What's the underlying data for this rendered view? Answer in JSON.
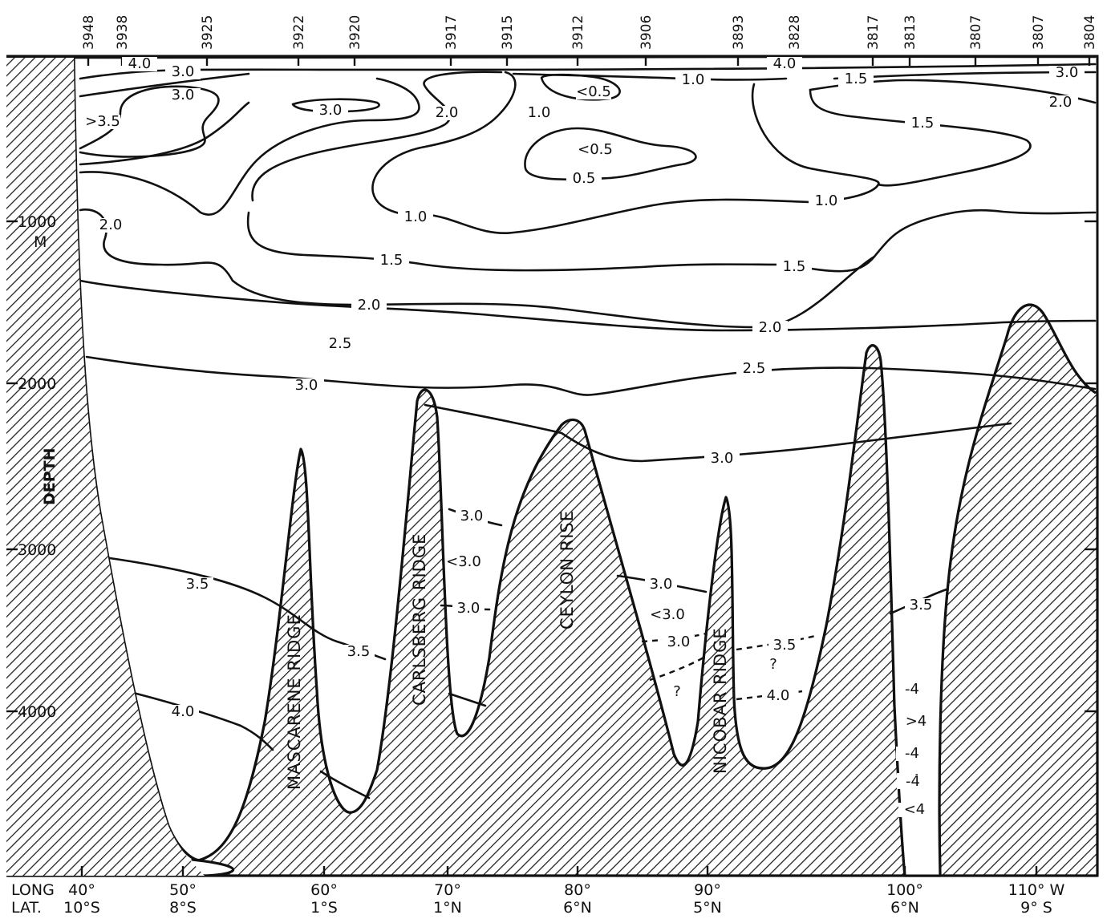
{
  "stations": [
    "3948",
    "3938",
    "3925",
    "3922",
    "3920",
    "3917",
    "3915",
    "3912",
    "3906",
    "3893",
    "3828",
    "3817",
    "3813",
    "3807",
    "3807",
    "3804"
  ],
  "depth_axis": {
    "title": "DEPTH",
    "unit": "M",
    "ticks": [
      "1000",
      "2000",
      "3000",
      "4000"
    ]
  },
  "bottom_axis": {
    "row_labels": [
      "LONG",
      "LAT."
    ],
    "longitudes": [
      "40°",
      "50°",
      "60°",
      "70°",
      "80°",
      "90°",
      "100°",
      "110° W"
    ],
    "latitudes": [
      "10°S",
      "8°S",
      "1°S",
      "1°N",
      "6°N",
      "5°N",
      "6°N",
      "9° S"
    ]
  },
  "ridges": [
    "MASCARENE RIDGE",
    "CARLSBERG RIDGE",
    "CEYLON RISE",
    "NICOBAR RIDGE"
  ],
  "contour_labels": {
    "surface": [
      "4.0",
      "3.0",
      "3.0",
      ">3.5",
      "3.0",
      "2.0",
      "1.0",
      "<0.5",
      "1.0",
      "4.0",
      "1.5",
      "3.0",
      "2.0",
      "1.5",
      "<0.5",
      "0.5",
      "1.0",
      "1.0",
      "2.0",
      "1.5",
      "1.5"
    ],
    "deep": [
      "2.0",
      "2.0",
      "2.5",
      "2.5",
      "3.0",
      "3.0"
    ],
    "basins": [
      "3.0",
      "<3.0",
      "3.0",
      "3.0",
      "<3.0",
      "3.0",
      "3.5",
      "?",
      "?",
      "4.0",
      "3.5",
      "3.5",
      "3.5",
      "4.0",
      "-4",
      "-4",
      ">4",
      "-4",
      "<4",
      "-4"
    ]
  }
}
